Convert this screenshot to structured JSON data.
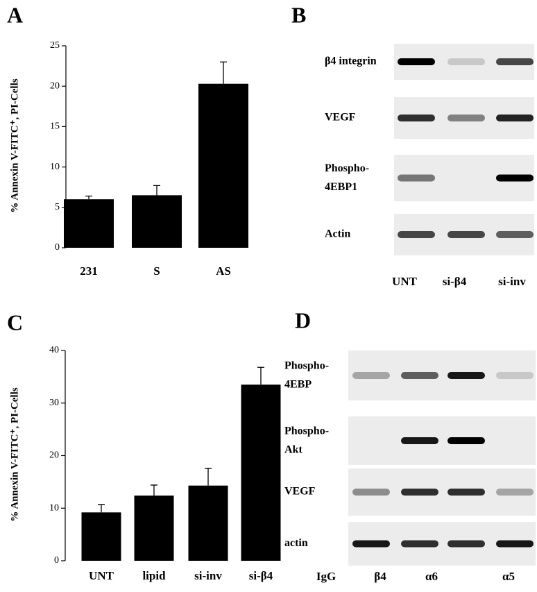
{
  "chart_data": [
    {
      "type": "bar",
      "panel": "A",
      "ylabel": "% Annexin V-FITC⁺, PI-Cells",
      "categories": [
        "231",
        "S",
        "AS"
      ],
      "values": [
        6.0,
        6.5,
        20.3
      ],
      "errors": [
        0.4,
        1.2,
        2.7
      ],
      "color": "#000000",
      "ylim": [
        0,
        25
      ],
      "yticks": [
        0,
        5,
        10,
        15,
        20,
        25
      ]
    },
    {
      "type": "bar",
      "panel": "C",
      "ylabel": "% Annexin V-FITC⁺, PI-Cells",
      "categories": [
        "UNT",
        "lipid",
        "si-inv",
        "si-β4"
      ],
      "values": [
        9.2,
        12.4,
        14.3,
        33.5
      ],
      "errors": [
        1.5,
        2.0,
        3.3,
        3.3
      ],
      "color": "#000000",
      "ylim": [
        0,
        40
      ],
      "yticks": [
        0,
        10,
        20,
        30,
        40
      ]
    }
  ],
  "blots": [
    {
      "panel": "B",
      "rows": [
        [
          "β4 integrin"
        ],
        [
          "VEGF"
        ],
        [
          "Phospho-",
          "4EBP1"
        ],
        [
          "Actin"
        ]
      ],
      "lanes": [
        "UNT",
        "si-β4",
        "si-inv"
      ]
    },
    {
      "panel": "D",
      "rows": [
        [
          "Phospho-",
          "4EBP"
        ],
        [
          "Phospho-",
          "Akt"
        ],
        [
          "VEGF"
        ],
        [
          "actin"
        ]
      ],
      "lanes": [
        "IgG",
        "β4",
        "α6",
        "α5"
      ]
    }
  ]
}
